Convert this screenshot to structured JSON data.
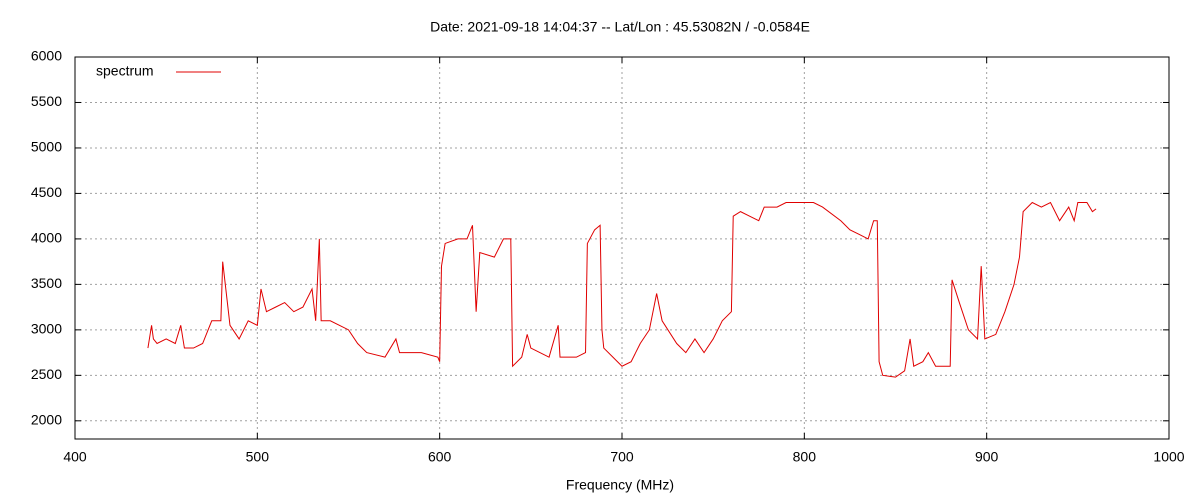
{
  "chart_data": {
    "type": "line",
    "title": "Date: 2021-09-18 14:04:37  --  Lat/Lon : 45.53082N / -0.0584E",
    "x_label": "Frequency (MHz)",
    "xlim": [
      400,
      1000
    ],
    "xticks": [
      400,
      500,
      600,
      700,
      800,
      900,
      1000
    ],
    "ylim": [
      1800,
      6000
    ],
    "yticks": [
      2000,
      2500,
      3000,
      3500,
      4000,
      4500,
      5000,
      5500,
      6000
    ],
    "grid": true,
    "legend": "upper left",
    "x": [
      440,
      442,
      443,
      445,
      450,
      455,
      458,
      460,
      465,
      470,
      475,
      480,
      481,
      485,
      490,
      495,
      500,
      502,
      505,
      510,
      515,
      520,
      525,
      530,
      532,
      534,
      535,
      540,
      545,
      550,
      555,
      560,
      570,
      576,
      578,
      580,
      590,
      599,
      600,
      601,
      603,
      610,
      615,
      618,
      620,
      622,
      630,
      635,
      639,
      640,
      645,
      648,
      650,
      660,
      665,
      666,
      675,
      680,
      681,
      685,
      688,
      689,
      690,
      695,
      700,
      705,
      710,
      715,
      719,
      722,
      730,
      735,
      740,
      745,
      750,
      755,
      760,
      761,
      765,
      770,
      775,
      778,
      785,
      790,
      800,
      805,
      810,
      820,
      825,
      830,
      835,
      838,
      840,
      841,
      843,
      850,
      855,
      858,
      860,
      865,
      868,
      872,
      880,
      881,
      885,
      890,
      895,
      897,
      899,
      905,
      910,
      915,
      918,
      920,
      925,
      930,
      935,
      940,
      945,
      948,
      950,
      955,
      958,
      960
    ],
    "series": [
      {
        "name": "spectrum",
        "color": "#e00000",
        "values": [
          2800,
          3050,
          2900,
          2850,
          2900,
          2850,
          3050,
          2800,
          2800,
          2850,
          3100,
          3100,
          3750,
          3050,
          2900,
          3100,
          3050,
          3450,
          3200,
          3250,
          3300,
          3200,
          3250,
          3450,
          3100,
          4000,
          3100,
          3100,
          3050,
          3000,
          2850,
          2750,
          2700,
          2900,
          2750,
          2750,
          2750,
          2700,
          2650,
          3700,
          3950,
          4000,
          4000,
          4150,
          3200,
          3850,
          3800,
          4000,
          4000,
          2600,
          2700,
          2950,
          2800,
          2700,
          3050,
          2700,
          2700,
          2750,
          3950,
          4100,
          4150,
          3000,
          2800,
          2700,
          2600,
          2650,
          2850,
          3000,
          3400,
          3100,
          2850,
          2750,
          2900,
          2750,
          2900,
          3100,
          3200,
          4250,
          4300,
          4250,
          4200,
          4350,
          4350,
          4400,
          4400,
          4400,
          4350,
          4200,
          4100,
          4050,
          4000,
          4200,
          4200,
          2650,
          2500,
          2480,
          2550,
          2900,
          2600,
          2650,
          2750,
          2600,
          2600,
          3550,
          3300,
          3000,
          2900,
          3700,
          2900,
          2950,
          3200,
          3500,
          3800,
          4300,
          4400,
          4350,
          4400,
          4200,
          4350,
          4200,
          4400,
          4400,
          4300,
          4330
        ]
      }
    ]
  }
}
